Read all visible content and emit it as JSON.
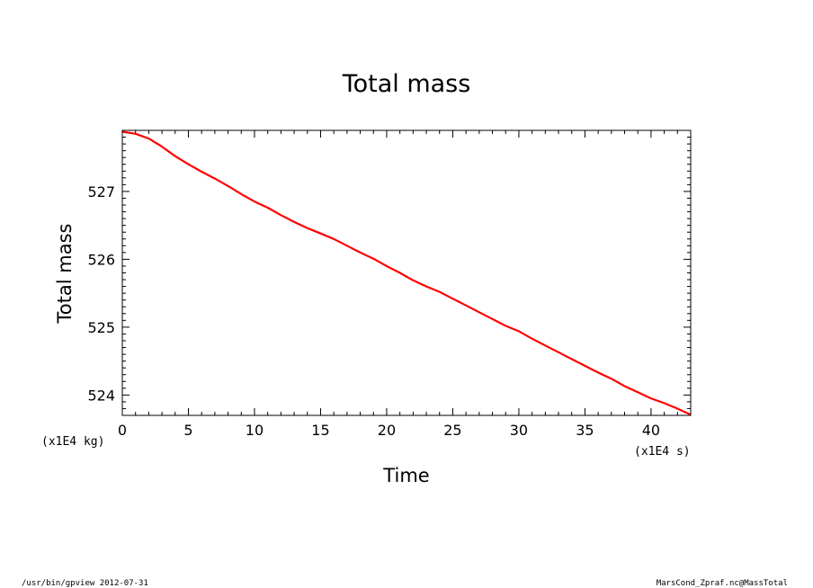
{
  "chart_data": {
    "type": "line",
    "title": "Total mass",
    "xlabel": "Time",
    "ylabel": "Total mass",
    "x_unit_label": "(x1E4 s)",
    "y_unit_label": "(x1E4 kg)",
    "xlim": [
      0,
      43
    ],
    "ylim": [
      523.7,
      527.9
    ],
    "x_ticks": [
      0,
      5,
      10,
      15,
      20,
      25,
      30,
      35,
      40
    ],
    "x_tick_labels": [
      "0",
      "5",
      "10",
      "15",
      "20",
      "25",
      "30",
      "35",
      "40"
    ],
    "y_ticks": [
      524,
      525,
      526,
      527
    ],
    "y_tick_labels": [
      "524",
      "525",
      "526",
      "527"
    ],
    "grid": false,
    "line_color": "#ff0000",
    "series": [
      {
        "x": [
          0,
          1,
          2,
          3,
          4,
          5,
          6,
          7,
          8,
          9,
          10,
          11,
          12,
          13,
          14,
          15,
          16,
          17,
          18,
          19,
          20,
          21,
          22,
          23,
          24,
          25,
          26,
          27,
          28,
          29,
          30,
          31,
          32,
          33,
          34,
          35,
          36,
          37,
          38,
          39,
          40,
          41,
          42,
          43
        ],
        "y": [
          527.88,
          527.85,
          527.78,
          527.66,
          527.52,
          527.4,
          527.29,
          527.19,
          527.08,
          526.96,
          526.85,
          526.76,
          526.65,
          526.55,
          526.46,
          526.38,
          526.3,
          526.2,
          526.1,
          526.01,
          525.9,
          525.8,
          525.69,
          525.6,
          525.52,
          525.42,
          525.32,
          525.22,
          525.12,
          525.02,
          524.94,
          524.83,
          524.73,
          524.63,
          524.53,
          524.43,
          524.33,
          524.24,
          524.13,
          524.04,
          523.95,
          523.88,
          523.8,
          523.71
        ]
      }
    ]
  },
  "footer": {
    "left": "/usr/bin/gpview   2012-07-31",
    "right": "MarsCond_Zpraf.nc@MassTotal"
  }
}
